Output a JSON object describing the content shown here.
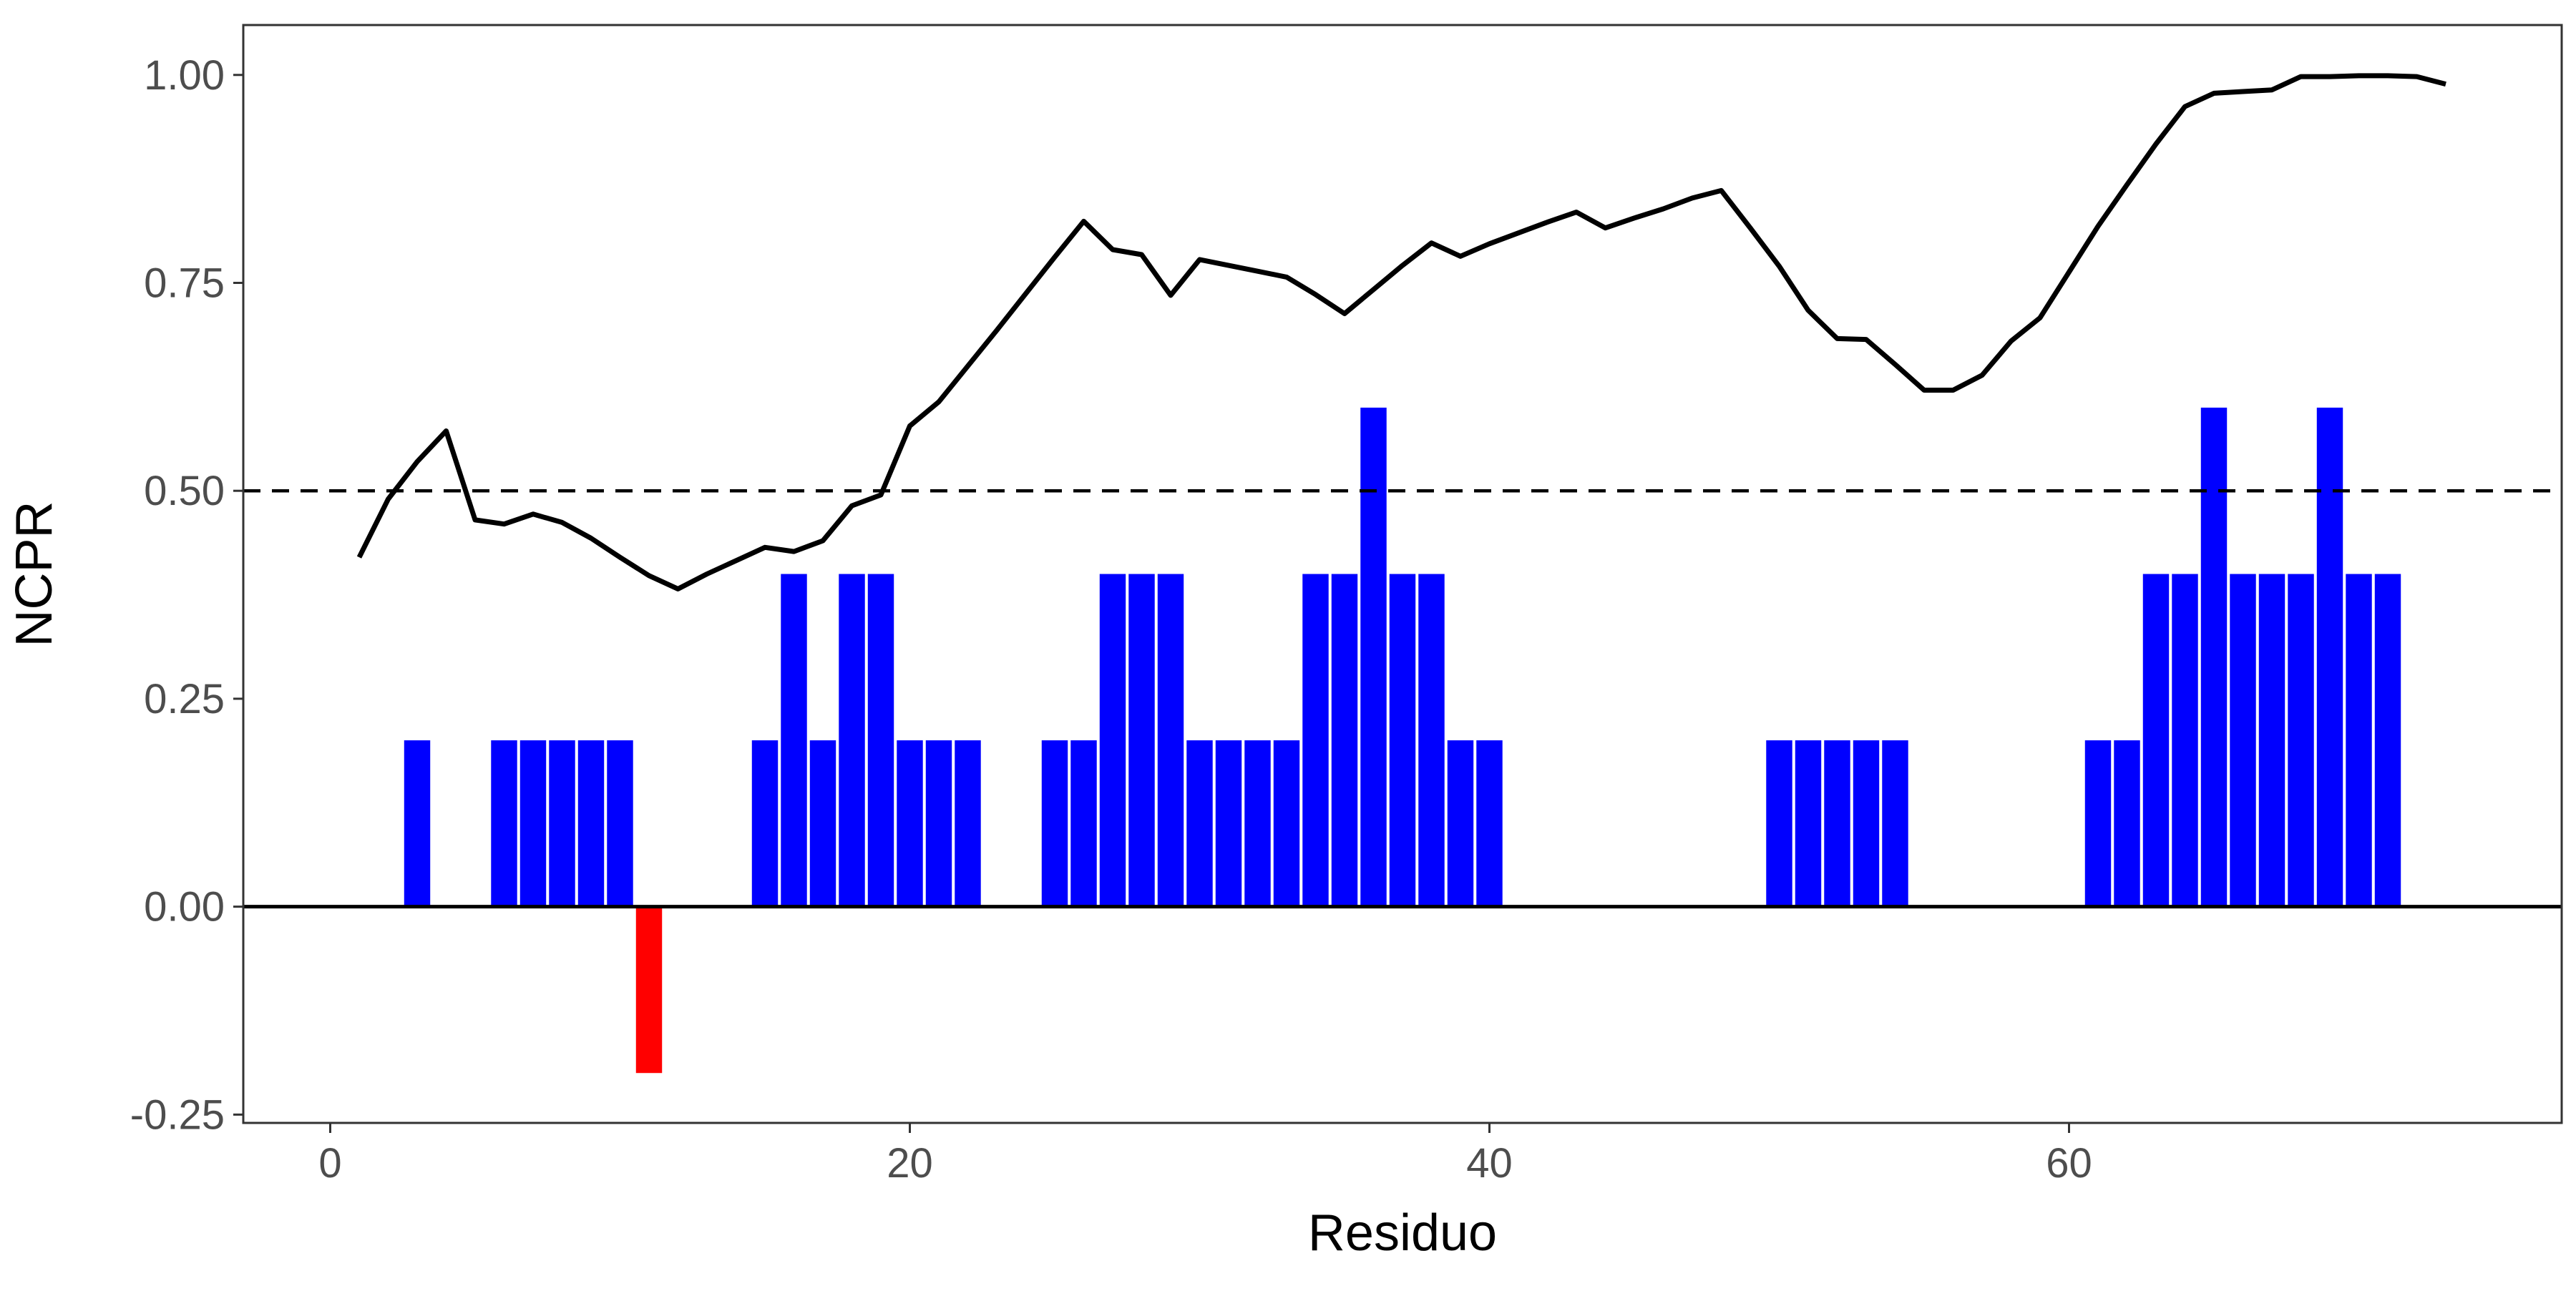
{
  "chart_data": {
    "type": "bar",
    "title": "",
    "xlabel": "Residuo",
    "ylabel": "NCPR",
    "xlim": [
      -3,
      77
    ],
    "ylim": [
      -0.26,
      1.06
    ],
    "x_ticks": [
      0,
      20,
      40,
      60
    ],
    "x_tick_labels": [
      "0",
      "20",
      "40",
      "60"
    ],
    "y_ticks": [
      -0.25,
      0,
      0.25,
      0.5,
      0.75,
      1.0
    ],
    "y_tick_labels": [
      "-0.25",
      "0.00",
      "0.25",
      "0.50",
      "0.75",
      "1.00"
    ],
    "grid": false,
    "legend": "none",
    "bar_colors": {
      "positive": "#0000ff",
      "negative": "#ff0000"
    },
    "bars": {
      "x": [
        1,
        2,
        3,
        4,
        5,
        6,
        7,
        8,
        9,
        10,
        11,
        12,
        13,
        14,
        15,
        16,
        17,
        18,
        19,
        20,
        21,
        22,
        23,
        24,
        25,
        26,
        27,
        28,
        29,
        30,
        31,
        32,
        33,
        34,
        35,
        36,
        37,
        38,
        39,
        40,
        41,
        42,
        43,
        44,
        45,
        46,
        47,
        48,
        49,
        50,
        51,
        52,
        53,
        54,
        55,
        56,
        57,
        58,
        59,
        60,
        61,
        62,
        63,
        64,
        65,
        66,
        67,
        68,
        69,
        70,
        71,
        72,
        73
      ],
      "values": [
        0,
        0,
        0.2,
        0,
        0,
        0.2,
        0.2,
        0.2,
        0.2,
        0.2,
        -0.2,
        0,
        0,
        0,
        0.2,
        0.4,
        0.2,
        0.4,
        0.4,
        0.2,
        0.2,
        0.2,
        0,
        0,
        0.2,
        0.2,
        0.4,
        0.4,
        0.4,
        0.2,
        0.2,
        0.2,
        0.2,
        0.4,
        0.4,
        0.6,
        0.4,
        0.4,
        0.2,
        0.2,
        0,
        0,
        0,
        0,
        0,
        0,
        0,
        0,
        0,
        0.2,
        0.2,
        0.2,
        0.2,
        0.2,
        0,
        0,
        0,
        0,
        0,
        0,
        0.2,
        0.2,
        0.4,
        0.4,
        0.6,
        0.4,
        0.4,
        0.4,
        0.6,
        0.4,
        0.4,
        0,
        0
      ]
    },
    "line": {
      "color": "#000000",
      "x": [
        1,
        2,
        3,
        4,
        5,
        6,
        7,
        8,
        9,
        10,
        11,
        12,
        13,
        14,
        15,
        16,
        17,
        18,
        19,
        20,
        21,
        22,
        23,
        24,
        25,
        26,
        27,
        28,
        29,
        30,
        31,
        32,
        33,
        34,
        35,
        36,
        37,
        38,
        39,
        40,
        41,
        42,
        43,
        44,
        45,
        46,
        47,
        48,
        49,
        50,
        51,
        52,
        53,
        54,
        55,
        56,
        57,
        58,
        59,
        60,
        61,
        62,
        63,
        64,
        65,
        66,
        67,
        68,
        69,
        70,
        71,
        72,
        73
      ],
      "y": [
        0.42,
        0.49,
        0.535,
        0.572,
        0.465,
        0.46,
        0.472,
        0.462,
        0.443,
        0.42,
        0.398,
        0.382,
        0.4,
        0.416,
        0.432,
        0.427,
        0.44,
        0.482,
        0.495,
        0.578,
        0.607,
        0.65,
        0.693,
        0.737,
        0.781,
        0.824,
        0.79,
        0.784,
        0.735,
        0.778,
        0.771,
        0.764,
        0.757,
        0.736,
        0.713,
        0.742,
        0.771,
        0.798,
        0.782,
        0.797,
        0.81,
        0.823,
        0.835,
        0.816,
        0.828,
        0.839,
        0.852,
        0.861,
        0.816,
        0.77,
        0.717,
        0.683,
        0.682,
        0.652,
        0.621,
        0.621,
        0.639,
        0.68,
        0.708,
        0.763,
        0.818,
        0.868,
        0.917,
        0.962,
        0.978,
        0.98,
        0.982,
        0.998,
        0.998,
        0.999,
        0.999,
        0.998,
        0.989
      ]
    },
    "reference_lines": [
      {
        "orientation": "horizontal",
        "y": 0.5,
        "style": "dashed",
        "color": "#000000"
      },
      {
        "orientation": "horizontal",
        "y": 0,
        "style": "solid",
        "color": "#000000"
      }
    ]
  }
}
